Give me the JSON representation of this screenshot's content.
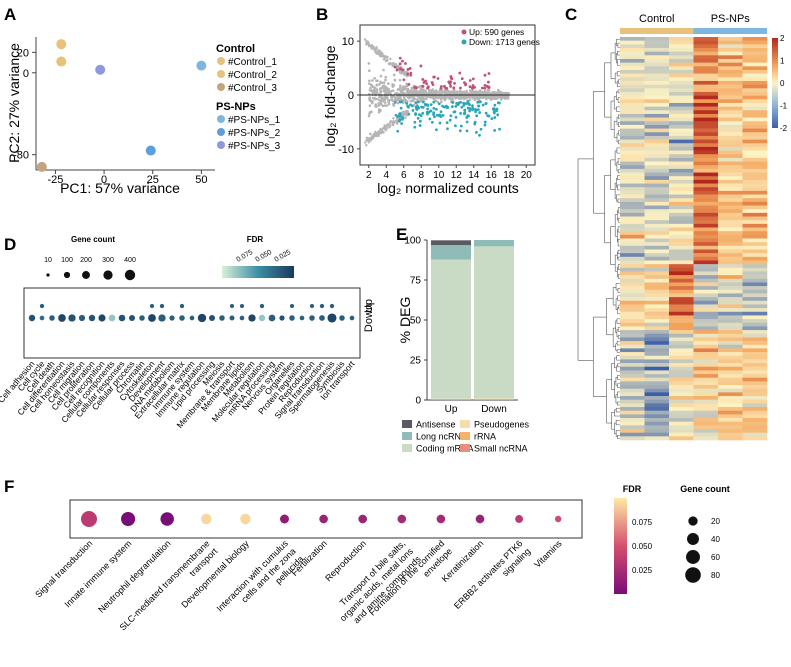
{
  "panel_letters": {
    "A": "A",
    "B": "B",
    "C": "C",
    "D": "D",
    "E": "E",
    "F": "F"
  },
  "colors": {
    "control": "#e8c27a",
    "control_dark": "#c4a47e",
    "psnp1": "#7fb6df",
    "psnp2": "#5d9fdc",
    "psnp3": "#8f99de",
    "up": "#c0507a",
    "down": "#2aa6b8",
    "ns": "#b5b5b5",
    "heat_low": "#3a5fa8",
    "heat_mid": "#fdf3c4",
    "heat_high": "#b3261e"
  },
  "chart_data": [
    {
      "panel": "A",
      "type": "scatter",
      "xlabel": "PC1: 57% variance",
      "ylabel": "PC2: 27% variance",
      "xticks": [
        "-25",
        "0",
        "25",
        "50"
      ],
      "yticks": [
        "20",
        "0",
        "-80"
      ],
      "legend": {
        "groups": [
          {
            "title": "Control",
            "items": [
              "#Control_1",
              "#Control_2",
              "#Control_3"
            ]
          },
          {
            "title": "PS-NPs",
            "items": [
              "#PS-NPs_1",
              "#PS-NPs_2",
              "#PS-NPs_3"
            ]
          }
        ]
      },
      "points": [
        {
          "name": "#Control_1",
          "x": -22,
          "y": 11
        },
        {
          "name": "#Control_2",
          "x": -22,
          "y": 28
        },
        {
          "name": "#Control_3",
          "x": -32,
          "y": -92
        },
        {
          "name": "#PS-NPs_1",
          "x": 50,
          "y": 7
        },
        {
          "name": "#PS-NPs_2",
          "x": 24,
          "y": -76
        },
        {
          "name": "#PS-NPs_3",
          "x": -2,
          "y": 3
        }
      ]
    },
    {
      "panel": "B",
      "type": "scatter",
      "xlabel": "log₂ normalized counts",
      "ylabel": "log₂ fold-change",
      "xticks": [
        "2",
        "4",
        "6",
        "8",
        "10",
        "12",
        "14",
        "16",
        "18",
        "20"
      ],
      "yticks": [
        "10",
        "0",
        "-10"
      ],
      "xlim": [
        1,
        21
      ],
      "ylim": [
        -13,
        13
      ],
      "legend": [
        "Up: 590 genes",
        "Down: 1713 genes"
      ],
      "series": [
        {
          "name": "Up: 590 genes",
          "count": 590
        },
        {
          "name": "Down: 1713 genes",
          "count": 1713
        }
      ]
    },
    {
      "panel": "C",
      "type": "heatmap",
      "columns": [
        "Control",
        "PS-NPs"
      ],
      "colorbar_ticks": [
        "2",
        "1",
        "0",
        "-1",
        "-2"
      ],
      "range": [
        -2,
        2
      ]
    },
    {
      "panel": "D",
      "type": "scatter",
      "title_size": "Gene count",
      "size_legend": [
        "10",
        "100",
        "200",
        "300",
        "400"
      ],
      "title_color": "FDR",
      "color_legend": [
        "0.075",
        "0.050",
        "0.025"
      ],
      "rows": [
        "Up",
        "Down"
      ],
      "categories": [
        "Cell adhesion",
        "Cell cycle",
        "Cell death",
        "Cell differentiation",
        "Cell homeostasis",
        "Cell migration",
        "Cell proliferation",
        "Cell recognition",
        "Cellular components",
        "Cellular responses",
        "Cellular process",
        "Chromatin",
        "Cytoskeleton",
        "Development",
        "DNA metabolism",
        "Extracellular matrix",
        "Immune system",
        "Immune regulation",
        "Lipid processing",
        "Meiosis",
        "Membrane & transport",
        "Membrane lipids",
        "Metabolism",
        "Molecular regulation",
        "mRNA processing",
        "Nervous system",
        "Organelles",
        "Protein regulation",
        "Reproduction",
        "Signal transduction",
        "Spermatogenesis",
        "Symbiosis",
        "Ion transport"
      ],
      "up_present": [
        0,
        1,
        0,
        0,
        0,
        0,
        0,
        0,
        0,
        0,
        0,
        0,
        1,
        1,
        0,
        1,
        0,
        0,
        0,
        0,
        1,
        1,
        0,
        1,
        0,
        0,
        1,
        0,
        1,
        1,
        1,
        0,
        0
      ],
      "up_sizes": [
        0,
        30,
        0,
        0,
        0,
        0,
        0,
        0,
        0,
        0,
        0,
        0,
        25,
        30,
        0,
        30,
        0,
        0,
        0,
        0,
        25,
        25,
        0,
        30,
        0,
        0,
        25,
        0,
        25,
        30,
        30,
        0,
        0
      ],
      "up_fdr": [
        0,
        0.02,
        0,
        0,
        0,
        0,
        0,
        0,
        0,
        0,
        0,
        0,
        0.02,
        0.02,
        0,
        0.02,
        0,
        0,
        0,
        0,
        0.02,
        0.02,
        0,
        0.02,
        0,
        0,
        0.02,
        0,
        0.02,
        0.02,
        0.02,
        0,
        0
      ],
      "down_sizes": [
        110,
        40,
        70,
        180,
        160,
        100,
        110,
        150,
        130,
        120,
        90,
        70,
        190,
        160,
        60,
        70,
        40,
        230,
        90,
        70,
        50,
        40,
        160,
        110,
        130,
        60,
        70,
        40,
        70,
        80,
        280,
        70,
        40
      ],
      "down_fdr": [
        0.015,
        0.025,
        0.02,
        0.01,
        0.015,
        0.02,
        0.015,
        0.01,
        0.06,
        0.015,
        0.015,
        0.02,
        0.01,
        0.02,
        0.02,
        0.02,
        0.02,
        0.01,
        0.015,
        0.02,
        0.02,
        0.02,
        0.01,
        0.06,
        0.02,
        0.015,
        0.02,
        0.02,
        0.02,
        0.02,
        0.01,
        0.02,
        0.02
      ]
    },
    {
      "panel": "E",
      "type": "bar",
      "ylabel": "% DEG",
      "categories": [
        "Up",
        "Down"
      ],
      "yticks": [
        "0",
        "25",
        "50",
        "75",
        "100"
      ],
      "ylim": [
        0,
        100
      ],
      "series": [
        {
          "name": "Coding mRNA",
          "values": [
            87,
            95
          ]
        },
        {
          "name": "Long ncRNA",
          "values": [
            9,
            4
          ]
        },
        {
          "name": "Antisense",
          "values": [
            3,
            0
          ]
        },
        {
          "name": "Pseudogenes",
          "values": [
            0.3,
            0.5
          ]
        },
        {
          "name": "rRNA",
          "values": [
            0.3,
            0.3
          ]
        },
        {
          "name": "Small ncRNA",
          "values": [
            0.2,
            0.2
          ]
        }
      ],
      "legend": [
        "Antisense",
        "Pseudogenes",
        "Long ncRNA",
        "rRNA",
        "Coding mRNA",
        "Small ncRNA"
      ]
    },
    {
      "panel": "F",
      "type": "scatter",
      "title_color": "FDR",
      "color_legend": [
        "0.075",
        "0.050",
        "0.025"
      ],
      "title_size": "Gene count",
      "size_legend": [
        "20",
        "40",
        "60",
        "80"
      ],
      "categories": [
        "Signal transduction",
        "Innate immune system",
        "Neutrophil degranulation",
        "SLC-mediated transmembrane transport",
        "Developmental biology",
        "Interaction with cumulus cells and the zona pellucida",
        "Fertilization",
        "Reproduction",
        "Transport of bile salts, organic acids, metal ions and amine compounds",
        "Formation of the cornified envelope",
        "Keratinization",
        "ERBB2 activates PTK6 signaling",
        "Vitamins"
      ],
      "sizes": [
        85,
        62,
        55,
        28,
        28,
        18,
        16,
        16,
        16,
        16,
        16,
        12,
        6
      ],
      "fdr": [
        0.04,
        0.01,
        0.01,
        0.09,
        0.09,
        0.02,
        0.025,
        0.025,
        0.03,
        0.03,
        0.025,
        0.04,
        0.05
      ]
    }
  ]
}
